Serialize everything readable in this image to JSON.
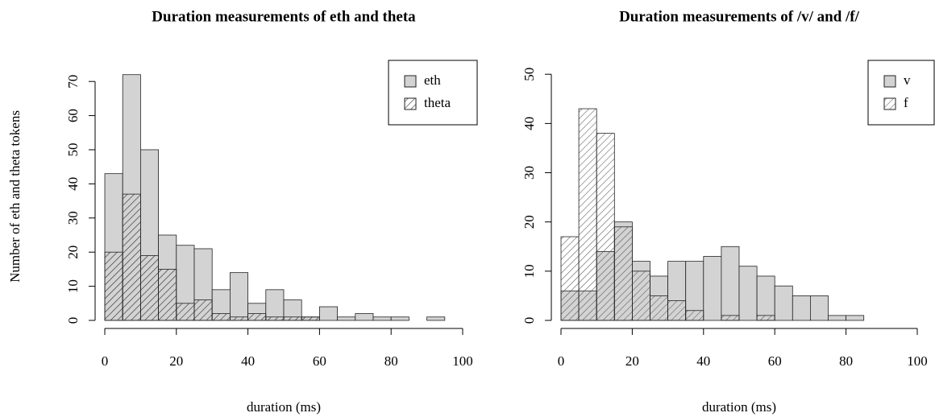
{
  "chart_data": [
    {
      "type": "histogram",
      "title": "Duration measurements of eth and theta",
      "xlabel": "duration (ms)",
      "ylabel": "Number of eth and theta tokens",
      "bins": [
        0,
        5,
        10,
        15,
        20,
        25,
        30,
        35,
        40,
        45,
        50,
        55,
        60,
        65,
        70,
        75,
        80,
        85,
        90,
        95,
        100
      ],
      "series": [
        {
          "name": "eth",
          "color": "#d3d3d3",
          "pattern": "solid",
          "values": [
            43,
            72,
            50,
            25,
            22,
            21,
            9,
            14,
            5,
            9,
            6,
            1,
            4,
            1,
            2,
            1,
            1,
            0,
            1,
            0
          ]
        },
        {
          "name": "theta",
          "color": "#333333",
          "pattern": "hatch",
          "values": [
            20,
            37,
            19,
            15,
            5,
            6,
            2,
            1,
            2,
            1,
            1,
            1,
            0,
            0,
            0,
            0,
            0,
            0,
            0,
            0
          ]
        }
      ],
      "xlim": [
        0,
        100
      ],
      "xticks": [
        0,
        20,
        40,
        60,
        80,
        100
      ],
      "ylim": [
        0,
        75
      ],
      "yticks": [
        0,
        10,
        20,
        30,
        40,
        50,
        60,
        70
      ],
      "legend": "topright"
    },
    {
      "type": "histogram",
      "title": "Duration measurements of /v/ and /f/",
      "xlabel": "duration (ms)",
      "bins": [
        0,
        5,
        10,
        15,
        20,
        25,
        30,
        35,
        40,
        45,
        50,
        55,
        60,
        65,
        70,
        75,
        80,
        85,
        90,
        95,
        100
      ],
      "series": [
        {
          "name": "v",
          "color": "#d3d3d3",
          "pattern": "solid",
          "values": [
            6,
            6,
            14,
            20,
            12,
            9,
            12,
            12,
            13,
            15,
            11,
            9,
            7,
            5,
            5,
            1,
            1,
            0,
            0,
            0
          ]
        },
        {
          "name": "f",
          "color": "#555555",
          "pattern": "hatch",
          "values": [
            17,
            43,
            38,
            19,
            10,
            5,
            4,
            2,
            0,
            1,
            0,
            1,
            0,
            0,
            0,
            0,
            0,
            0,
            0,
            0
          ]
        }
      ],
      "xlim": [
        0,
        100
      ],
      "xticks": [
        0,
        20,
        40,
        60,
        80,
        100
      ],
      "ylim": [
        0,
        52
      ],
      "yticks": [
        0,
        10,
        20,
        30,
        40,
        50
      ],
      "legend": "topright"
    }
  ]
}
